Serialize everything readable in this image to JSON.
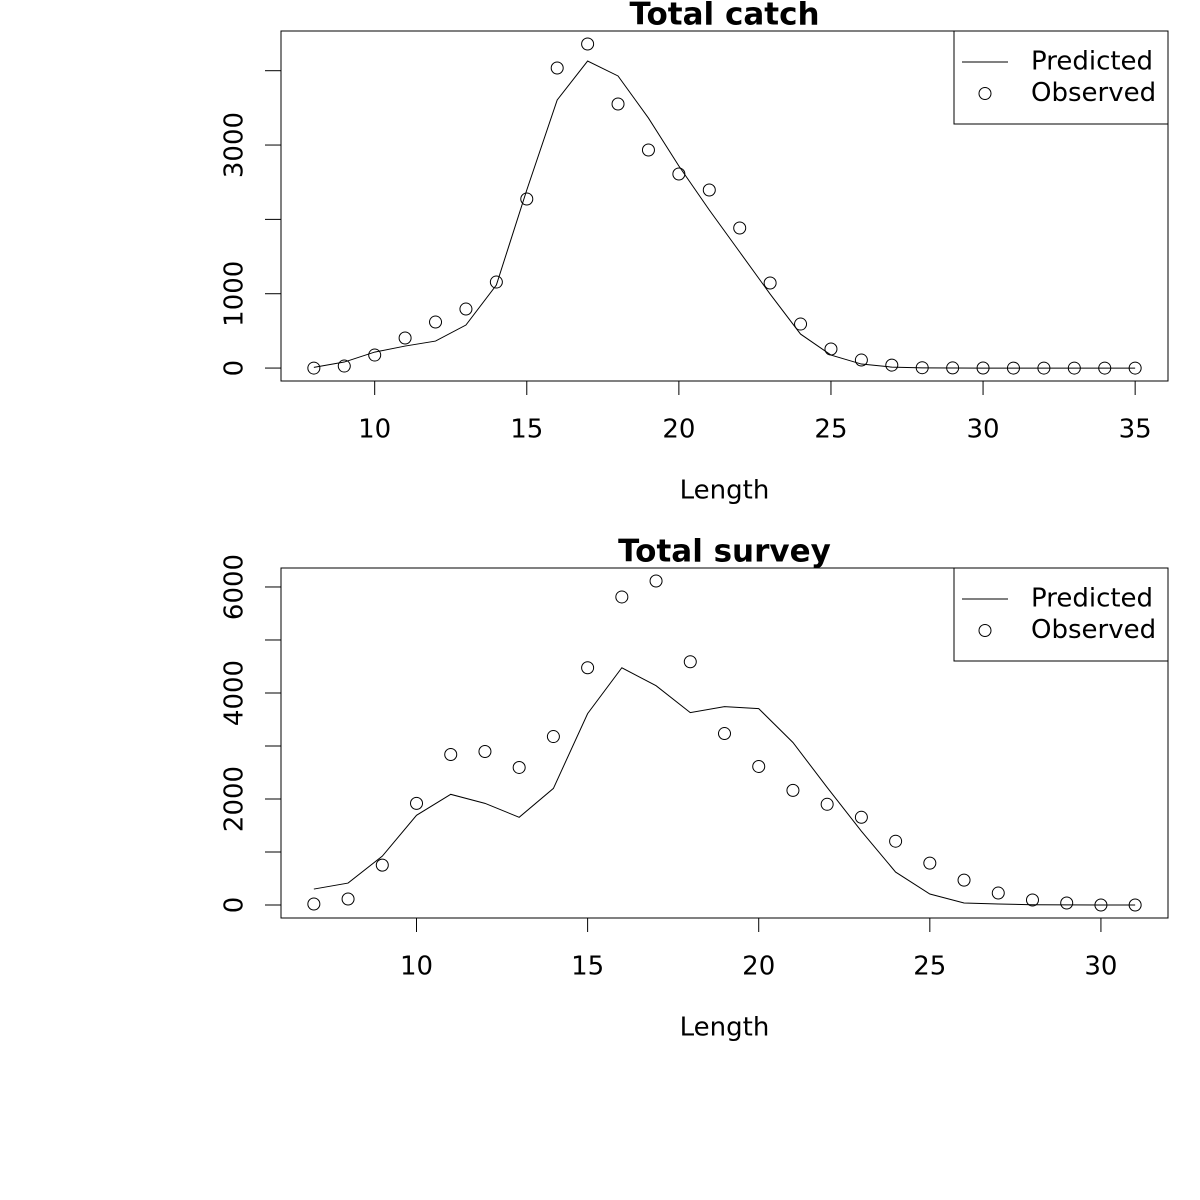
{
  "chart_data": [
    {
      "type": "line",
      "title": "Total catch",
      "x_label": "Length",
      "x": [
        8,
        9,
        10,
        11,
        12,
        13,
        14,
        15,
        16,
        17,
        18,
        19,
        20,
        21,
        22,
        23,
        24,
        25,
        26,
        27,
        28,
        29,
        30,
        31,
        32,
        33,
        34,
        35
      ],
      "series": [
        {
          "name": "Predicted",
          "style": "line",
          "color": "#000000",
          "values": [
            10,
            81,
            215,
            296,
            363,
            579,
            1117,
            2395,
            3606,
            4130,
            3929,
            3363,
            2718,
            2126,
            1561,
            996,
            457,
            175,
            54,
            13,
            3,
            1,
            0,
            0,
            0,
            0,
            0,
            0
          ]
        },
        {
          "name": "Observed",
          "style": "points",
          "color": "#000000",
          "values": [
            0,
            27,
            175,
            404,
            619,
            794,
            1157,
            2274,
            4036,
            4359,
            3552,
            2933,
            2610,
            2395,
            1884,
            1144,
            592,
            256,
            108,
            40,
            5,
            2,
            1,
            0,
            0,
            0,
            0,
            0
          ]
        }
      ],
      "xlim": [
        6.92,
        36.08
      ],
      "xticks": [
        10,
        15,
        20,
        25,
        30,
        35
      ],
      "ylim": [
        -174,
        4534
      ],
      "yticks": [
        0,
        1000,
        3000
      ],
      "ytick_marks": [
        0,
        1000,
        2000,
        3000,
        4000
      ],
      "legend": "topright"
    },
    {
      "type": "line",
      "title": "Total survey",
      "x_label": "Length",
      "x": [
        7,
        8,
        9,
        10,
        11,
        12,
        13,
        14,
        15,
        16,
        17,
        18,
        19,
        20,
        21,
        22,
        23,
        24,
        25,
        26,
        27,
        28,
        29,
        30,
        31
      ],
      "series": [
        {
          "name": "Predicted",
          "style": "line",
          "color": "#000000",
          "values": [
            301,
            414,
            922,
            1693,
            2088,
            1918,
            1655,
            2200,
            3611,
            4476,
            4138,
            3630,
            3743,
            3705,
            3066,
            2219,
            1392,
            621,
            207,
            38,
            19,
            5,
            2,
            1,
            0
          ]
        },
        {
          "name": "Observed",
          "style": "points",
          "color": "#000000",
          "values": [
            19,
            113,
            752,
            1918,
            2840,
            2896,
            2595,
            3178,
            4476,
            5812,
            6113,
            4589,
            3235,
            2614,
            2163,
            1900,
            1655,
            1204,
            790,
            470,
            226,
            94,
            38,
            0,
            0
          ]
        }
      ],
      "xlim": [
        6.04,
        31.96
      ],
      "xticks": [
        10,
        15,
        20,
        25,
        30
      ],
      "ylim": [
        -245,
        6358
      ],
      "yticks": [
        0,
        2000,
        4000,
        6000
      ],
      "ytick_marks": [
        0,
        1000,
        2000,
        3000,
        4000,
        5000,
        6000
      ],
      "legend": "topright"
    }
  ]
}
